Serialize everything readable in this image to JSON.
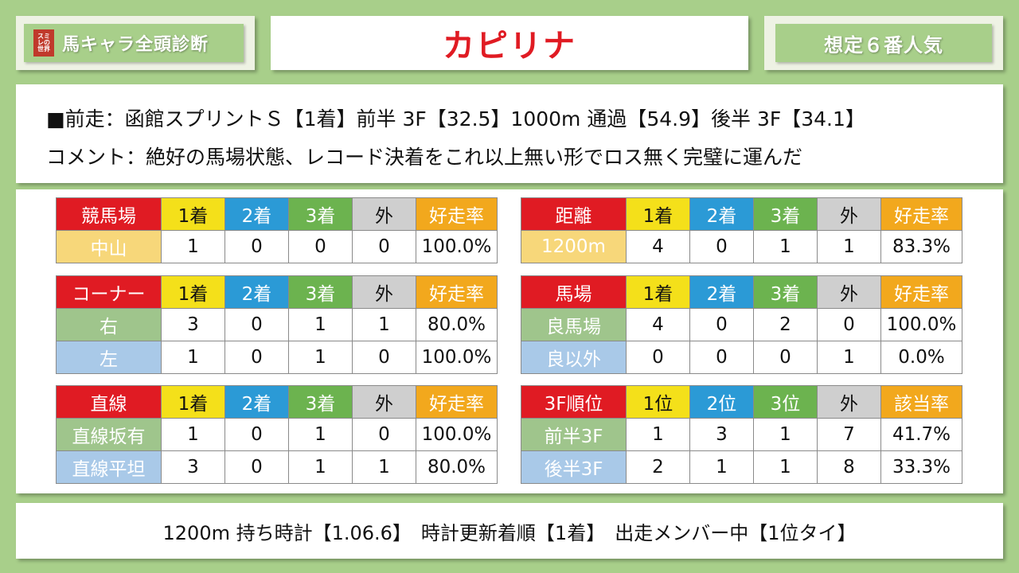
{
  "brand": {
    "logo_text": "スミレの世界",
    "title": "馬キャラ全頭診断"
  },
  "horse_name": "カピリナ",
  "popularity": "想定６番人気",
  "race_info": {
    "line1": "■前走：函館スプリントＳ【1着】前半 3F【32.5】1000m 通過【54.9】後半 3F【34.1】",
    "line2": "コメント：絶好の馬場状態、レコード決着をこれ以上無い形でロス無く完璧に運んだ"
  },
  "tables": {
    "track": {
      "headers": [
        "競馬場",
        "1着",
        "2着",
        "3着",
        "外",
        "好走率"
      ],
      "rows": [
        {
          "label": "中山",
          "values": [
            "1",
            "0",
            "0",
            "0",
            "100.0%"
          ]
        }
      ]
    },
    "distance": {
      "headers": [
        "距離",
        "1着",
        "2着",
        "3着",
        "外",
        "好走率"
      ],
      "rows": [
        {
          "label": "1200m",
          "values": [
            "4",
            "0",
            "1",
            "1",
            "83.3%"
          ]
        }
      ]
    },
    "corner": {
      "headers": [
        "コーナー",
        "1着",
        "2着",
        "3着",
        "外",
        "好走率"
      ],
      "rows": [
        {
          "label": "右",
          "values": [
            "3",
            "0",
            "1",
            "1",
            "80.0%"
          ]
        },
        {
          "label": "左",
          "values": [
            "1",
            "0",
            "1",
            "0",
            "100.0%"
          ]
        }
      ]
    },
    "going": {
      "headers": [
        "馬場",
        "1着",
        "2着",
        "3着",
        "外",
        "好走率"
      ],
      "rows": [
        {
          "label": "良馬場",
          "values": [
            "4",
            "0",
            "2",
            "0",
            "100.0%"
          ]
        },
        {
          "label": "良以外",
          "values": [
            "0",
            "0",
            "0",
            "1",
            "0.0%"
          ]
        }
      ]
    },
    "straight": {
      "headers": [
        "直線",
        "1着",
        "2着",
        "3着",
        "外",
        "好走率"
      ],
      "rows": [
        {
          "label": "直線坂有",
          "values": [
            "1",
            "0",
            "1",
            "0",
            "100.0%"
          ]
        },
        {
          "label": "直線平坦",
          "values": [
            "3",
            "0",
            "1",
            "1",
            "80.0%"
          ]
        }
      ]
    },
    "pace": {
      "headers": [
        "3F順位",
        "1位",
        "2位",
        "3位",
        "外",
        "該当率"
      ],
      "rows": [
        {
          "label": "前半3F",
          "values": [
            "1",
            "3",
            "1",
            "7",
            "41.7%"
          ]
        },
        {
          "label": "後半3F",
          "values": [
            "2",
            "1",
            "1",
            "8",
            "33.3%"
          ]
        }
      ]
    }
  },
  "footer": "1200m 持ち時計【1.06.6】　時計更新着順【1着】　出走メンバー中【1位タイ】"
}
